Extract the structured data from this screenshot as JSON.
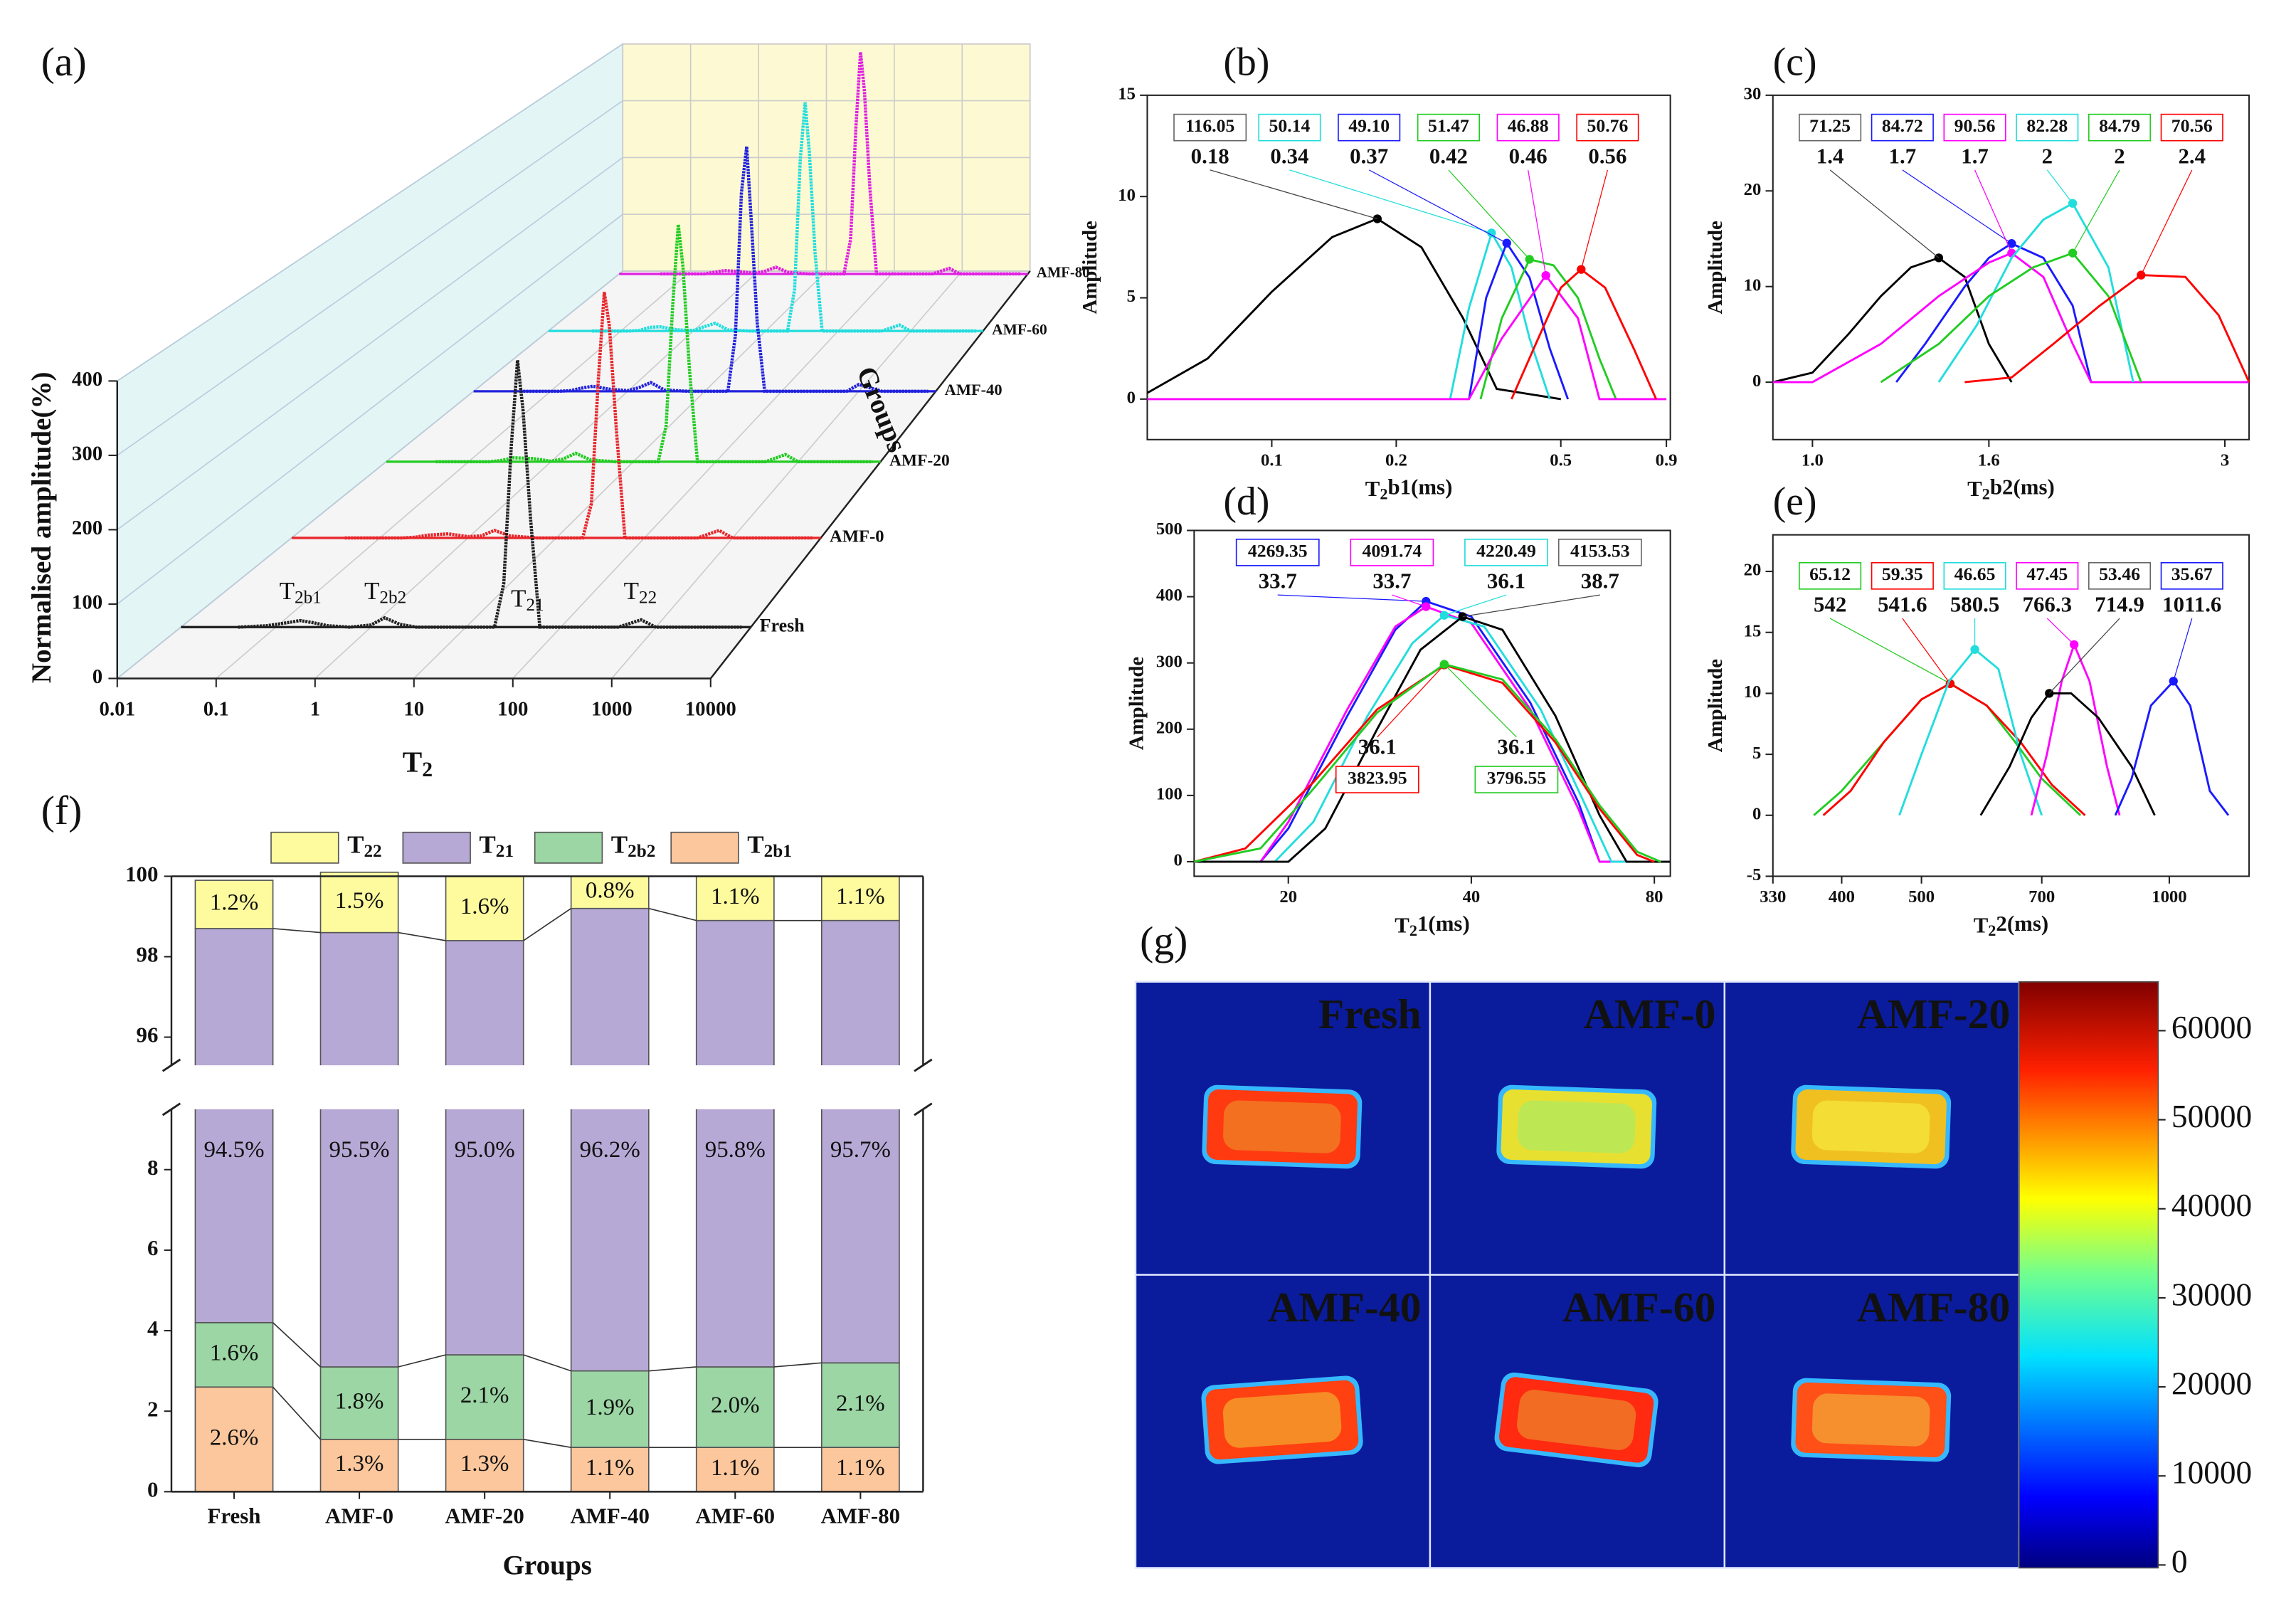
{
  "chart_data": [
    {
      "panel": "(a)",
      "type": "waterfall3d",
      "xlabel": "T2",
      "ylabel": "Normalised amplitude(%)",
      "zlabel": "Groups",
      "xscale": "log",
      "xlim": [
        0.01,
        10000
      ],
      "xticks": [
        0.01,
        0.1,
        1,
        10,
        100,
        1000,
        10000
      ],
      "ylim": [
        0,
        400
      ],
      "yticks": [
        0,
        100,
        200,
        300,
        400
      ],
      "x": [
        0.04,
        0.08,
        0.13,
        0.18,
        0.25,
        0.35,
        0.6,
        1,
        1.4,
        2,
        3,
        6,
        12,
        20,
        25,
        30,
        35,
        40,
        48,
        60,
        150,
        400,
        700,
        1000,
        2000,
        8000
      ],
      "series": [
        {
          "name": "Fresh",
          "color": "#222222",
          "values": [
            0,
            2,
            6,
            9,
            6,
            2,
            0,
            3,
            13,
            4,
            0,
            0,
            0,
            0,
            60,
            250,
            370,
            300,
            150,
            0,
            0,
            0,
            10,
            0,
            0,
            0
          ]
        },
        {
          "name": "AMF-0",
          "color": "#e8262b",
          "values": [
            0,
            0,
            0,
            0,
            1,
            4,
            6,
            2,
            3,
            11,
            3,
            0,
            0,
            0,
            50,
            230,
            360,
            310,
            160,
            0,
            0,
            0,
            11,
            0,
            0,
            0
          ]
        },
        {
          "name": "AMF-20",
          "color": "#22cc22",
          "values": [
            0,
            0,
            0,
            0,
            2,
            6,
            5,
            1,
            4,
            13,
            3,
            0,
            0,
            0,
            55,
            240,
            365,
            300,
            140,
            0,
            0,
            0,
            11,
            0,
            0,
            0
          ]
        },
        {
          "name": "AMF-40",
          "color": "#2222dd",
          "values": [
            0,
            0,
            0,
            1,
            5,
            8,
            3,
            1,
            6,
            14,
            2,
            0,
            0,
            0,
            90,
            320,
            395,
            280,
            110,
            0,
            0,
            0,
            0,
            11,
            0,
            0
          ]
        },
        {
          "name": "AMF-60",
          "color": "#22dddd",
          "values": [
            0,
            0,
            0,
            1,
            6,
            7,
            2,
            1,
            7,
            13,
            2,
            0,
            0,
            0,
            70,
            290,
            385,
            300,
            130,
            0,
            0,
            0,
            10,
            0,
            0,
            0
          ]
        },
        {
          "name": "AMF-80",
          "color": "#e020e0",
          "values": [
            0,
            0,
            0,
            0,
            3,
            6,
            4,
            1,
            5,
            12,
            3,
            0,
            0,
            0,
            60,
            260,
            390,
            320,
            150,
            0,
            0,
            0,
            10,
            0,
            0,
            0
          ]
        }
      ],
      "annotations": [
        "T2b1",
        "T2b2",
        "T21",
        "T22"
      ]
    },
    {
      "panel": "(b)",
      "type": "line",
      "xlabel": "T2b1(ms)",
      "ylabel": "Amplitude",
      "xscale": "log",
      "xlim": [
        0.05,
        0.92
      ],
      "xticks": [
        0.1,
        0.2,
        0.5,
        0.9
      ],
      "ylim": [
        -2,
        15
      ],
      "yticks": [
        0,
        5,
        10,
        15
      ],
      "series": [
        {
          "color": "#000000",
          "x": [
            0.05,
            0.07,
            0.1,
            0.14,
            0.18,
            0.23,
            0.29,
            0.35,
            0.5
          ],
          "values": [
            0.3,
            2,
            5.3,
            8,
            8.9,
            7.5,
            4,
            0.5,
            0
          ],
          "peak": 0.18,
          "area": "116.05"
        },
        {
          "color": "#22dddd",
          "x": [
            0.27,
            0.3,
            0.34,
            0.38,
            0.42,
            0.47
          ],
          "values": [
            0,
            4.5,
            8.2,
            6.5,
            3,
            0
          ],
          "peak": 0.34,
          "area": "50.14"
        },
        {
          "color": "#1a1aff",
          "x": [
            0.3,
            0.33,
            0.37,
            0.42,
            0.47,
            0.52
          ],
          "values": [
            0,
            5,
            7.7,
            6,
            2.5,
            0
          ],
          "peak": 0.37,
          "area": "49.10"
        },
        {
          "color": "#22cc22",
          "x": [
            0.32,
            0.36,
            0.42,
            0.48,
            0.55,
            0.62,
            0.68
          ],
          "values": [
            0,
            4,
            6.9,
            6.6,
            5,
            2,
            0
          ],
          "peak": 0.42,
          "area": "51.47"
        },
        {
          "color": "#ff00ff",
          "x": [
            0.05,
            0.3,
            0.36,
            0.46,
            0.55,
            0.62,
            0.9
          ],
          "values": [
            0,
            0,
            3,
            6.1,
            4,
            0,
            0
          ],
          "peak": 0.46,
          "area": "46.88"
        },
        {
          "color": "#ff0000",
          "x": [
            0.38,
            0.43,
            0.5,
            0.56,
            0.64,
            0.75,
            0.85
          ],
          "values": [
            0,
            2.5,
            5.5,
            6.4,
            5.5,
            2.5,
            0
          ],
          "peak": 0.56,
          "area": "50.76"
        }
      ]
    },
    {
      "panel": "(c)",
      "type": "line",
      "xlabel": "T2b2(ms)",
      "ylabel": "Amplitude",
      "xscale": "log",
      "xlim": [
        0.9,
        3.2
      ],
      "xticks": [
        {
          "value": 1,
          "label": "1.0"
        },
        1.6,
        3
      ],
      "ylim": [
        -6,
        30
      ],
      "yticks": [
        0,
        10,
        20,
        30
      ],
      "series": [
        {
          "color": "#000000",
          "x": [
            0.9,
            1.0,
            1.1,
            1.2,
            1.3,
            1.4,
            1.5,
            1.6,
            1.7
          ],
          "values": [
            0,
            1,
            5,
            9,
            12,
            13,
            11,
            4,
            0
          ],
          "peak": 1.4,
          "area": "71.25"
        },
        {
          "color": "#1a1aff",
          "x": [
            1.25,
            1.35,
            1.5,
            1.6,
            1.7,
            1.85,
            2.0,
            2.1
          ],
          "values": [
            0,
            4,
            10,
            13,
            14.5,
            13,
            8,
            0
          ],
          "peak": 1.7,
          "area": "84.72"
        },
        {
          "color": "#ff00ff",
          "x": [
            0.9,
            1.0,
            1.2,
            1.4,
            1.6,
            1.7,
            1.85,
            2.0,
            2.1,
            3.2
          ],
          "values": [
            0,
            0,
            4,
            9,
            12.5,
            13.5,
            11,
            4,
            0,
            0
          ],
          "peak": 1.7,
          "area": "90.56"
        },
        {
          "color": "#22dddd",
          "x": [
            1.4,
            1.55,
            1.7,
            1.85,
            2.0,
            2.2,
            2.35
          ],
          "values": [
            0,
            6,
            13,
            17,
            18.7,
            12,
            0
          ],
          "peak": 2,
          "area": "82.28"
        },
        {
          "color": "#22cc22",
          "x": [
            1.2,
            1.4,
            1.6,
            1.8,
            2.0,
            2.2,
            2.4
          ],
          "values": [
            0,
            4,
            9,
            12,
            13.5,
            9,
            0
          ],
          "peak": 2,
          "area": "84.79"
        },
        {
          "color": "#ff0000",
          "x": [
            1.5,
            1.7,
            1.9,
            2.15,
            2.4,
            2.7,
            2.95,
            3.2
          ],
          "values": [
            0,
            0.5,
            4,
            8,
            11.2,
            11,
            7,
            0
          ],
          "peak": 2.4,
          "area": "70.56"
        }
      ]
    },
    {
      "panel": "(d)",
      "type": "line",
      "xlabel": "T21(ms)",
      "ylabel": "Amplitude",
      "xscale": "log",
      "xlim": [
        14,
        85
      ],
      "xticks": [
        20,
        40,
        80
      ],
      "ylim": [
        -22,
        500
      ],
      "yticks": [
        0,
        100,
        200,
        300,
        400,
        500
      ],
      "series": [
        {
          "color": "#1a1aff",
          "x": [
            14,
            18,
            20,
            25,
            30,
            33.7,
            40,
            50,
            60,
            65,
            85
          ],
          "values": [
            0,
            0,
            50,
            220,
            350,
            393,
            370,
            240,
            90,
            0,
            0
          ],
          "peak": 33.7,
          "area": "4269.35"
        },
        {
          "color": "#ff00ff",
          "x": [
            14,
            18,
            20,
            25,
            30,
            33.7,
            40,
            50,
            60,
            65,
            85
          ],
          "values": [
            0,
            0,
            60,
            230,
            355,
            385,
            360,
            230,
            80,
            0,
            0
          ],
          "peak": 33.7,
          "area": "4091.74"
        },
        {
          "color": "#22dddd",
          "x": [
            14,
            19,
            22,
            27,
            32,
            36.1,
            42,
            52,
            62,
            68,
            85
          ],
          "values": [
            0,
            0,
            60,
            220,
            330,
            372,
            355,
            230,
            80,
            0,
            0
          ],
          "peak": 36.1,
          "area": "4220.49"
        },
        {
          "color": "#000000",
          "x": [
            14,
            20,
            23,
            28,
            33,
            38.7,
            45,
            55,
            65,
            72,
            85
          ],
          "values": [
            0,
            0,
            50,
            200,
            320,
            370,
            350,
            220,
            70,
            0,
            0
          ],
          "peak": 38.7,
          "area": "4153.53"
        },
        {
          "color": "#ff0000",
          "x": [
            14,
            17,
            22,
            28,
            36.1,
            45,
            55,
            65,
            75,
            80
          ],
          "values": [
            0,
            20,
            120,
            230,
            297,
            270,
            180,
            80,
            10,
            0
          ],
          "peak": 36.1,
          "area": "3823.95"
        },
        {
          "color": "#22cc22",
          "x": [
            14,
            18,
            22,
            28,
            36.1,
            45,
            55,
            65,
            75,
            82
          ],
          "values": [
            0,
            20,
            110,
            225,
            298,
            275,
            185,
            85,
            15,
            0
          ],
          "peak": 36.1,
          "area": "3796.55"
        }
      ]
    },
    {
      "panel": "(e)",
      "type": "line",
      "xlabel": "T22(ms)",
      "ylabel": "Amplitude",
      "xscale": "log",
      "xlim": [
        330,
        1250
      ],
      "xticks": [
        330,
        400,
        500,
        700,
        1000
      ],
      "ylim": [
        -5,
        23
      ],
      "yticks": [
        -5,
        0,
        5,
        10,
        15,
        20
      ],
      "series": [
        {
          "color": "#22cc22",
          "x": [
            370,
            400,
            450,
            500,
            542,
            600,
            650,
            700,
            780
          ],
          "values": [
            0,
            2,
            6,
            9.5,
            10.8,
            9,
            6,
            3,
            0
          ],
          "peak": 542,
          "area": "65.12"
        },
        {
          "color": "#ff0000",
          "x": [
            380,
            410,
            450,
            500,
            541.6,
            600,
            660,
            720,
            790
          ],
          "values": [
            0,
            2,
            6,
            9.5,
            10.8,
            9,
            6,
            2.5,
            0
          ],
          "peak": 541.6,
          "area": "59.35"
        },
        {
          "color": "#22dddd",
          "x": [
            470,
            500,
            540,
            580.5,
            620,
            660,
            700
          ],
          "values": [
            0,
            5,
            11,
            13.6,
            12,
            5,
            0
          ],
          "peak": 580.5,
          "area": "46.65"
        },
        {
          "color": "#ff00ff",
          "x": [
            680,
            710,
            740,
            766.3,
            800,
            840,
            870
          ],
          "values": [
            0,
            5,
            11,
            14,
            11,
            4,
            0
          ],
          "peak": 766.3,
          "area": "47.45"
        },
        {
          "color": "#000000",
          "x": [
            590,
            640,
            680,
            714.9,
            760,
            820,
            900,
            960
          ],
          "values": [
            0,
            4,
            8,
            10,
            10,
            8,
            4,
            0
          ],
          "peak": 714.9,
          "area": "53.46"
        },
        {
          "color": "#1a1aff",
          "x": [
            860,
            900,
            950,
            1011.6,
            1060,
            1120,
            1180
          ],
          "values": [
            0,
            3,
            9,
            11,
            9,
            2,
            0
          ],
          "peak": 1011.6,
          "area": "35.67"
        }
      ]
    },
    {
      "panel": "(f)",
      "type": "stacked_bar",
      "xlabel": "Groups",
      "categories": [
        "Fresh",
        "AMF-0",
        "AMF-20",
        "AMF-40",
        "AMF-60",
        "AMF-80"
      ],
      "ylim": [
        0,
        100
      ],
      "axis_break": [
        9.5,
        95.3
      ],
      "yticks": [
        0,
        2,
        4,
        6,
        8,
        96,
        98,
        100
      ],
      "series": [
        {
          "name": "T2b1",
          "color": "#fcc79c",
          "values": [
            2.6,
            1.3,
            1.3,
            1.1,
            1.1,
            1.1
          ],
          "value_labels": [
            "2.6%",
            "1.3%",
            "1.3%",
            "1.1%",
            "1.1%",
            "1.1%"
          ]
        },
        {
          "name": "T2b2",
          "color": "#9bd6a4",
          "values": [
            1.6,
            1.8,
            2.1,
            1.9,
            2.0,
            2.1
          ],
          "value_labels": [
            "1.6%",
            "1.8%",
            "2.1%",
            "1.9%",
            "2.0%",
            "2.1%"
          ]
        },
        {
          "name": "T21",
          "color": "#b7a9d6",
          "values": [
            94.5,
            95.5,
            95.0,
            96.2,
            95.8,
            95.7
          ],
          "value_labels": [
            "94.5%",
            "95.5%",
            "95.0%",
            "96.2%",
            "95.8%",
            "95.7%"
          ]
        },
        {
          "name": "T22",
          "color": "#fdfb9e",
          "values": [
            1.2,
            1.5,
            1.6,
            0.8,
            1.1,
            1.1
          ],
          "value_labels": [
            "1.2%",
            "1.5%",
            "1.6%",
            "0.8%",
            "1.1%",
            "1.1%"
          ]
        }
      ]
    },
    {
      "panel": "(g)",
      "type": "image_grid",
      "labels": [
        "Fresh",
        "AMF-0",
        "AMF-20",
        "AMF-40",
        "AMF-60",
        "AMF-80"
      ],
      "clim": [
        0,
        65000
      ],
      "cticks": [
        0,
        10000,
        20000,
        30000,
        40000,
        50000,
        60000
      ]
    }
  ]
}
